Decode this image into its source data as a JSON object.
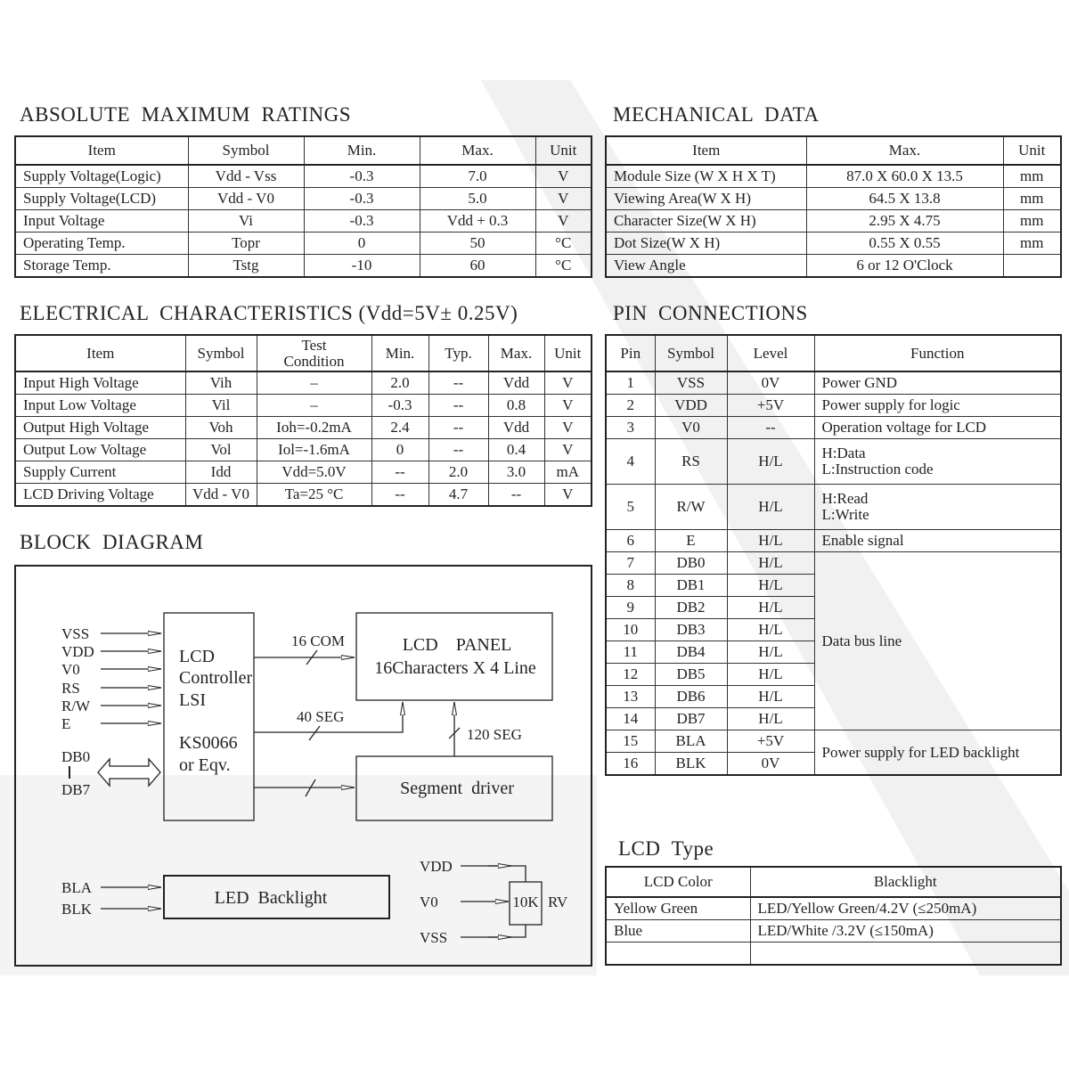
{
  "absolute_max": {
    "title": "ABSOLUTE  MAXIMUM  RATINGS",
    "headers": [
      "Item",
      "Symbol",
      "Min.",
      "Max.",
      "Unit"
    ],
    "rows": [
      [
        "Supply Voltage(Logic)",
        "Vdd - Vss",
        "-0.3",
        "7.0",
        "V"
      ],
      [
        "Supply Voltage(LCD)",
        "Vdd - V0",
        "-0.3",
        "5.0",
        "V"
      ],
      [
        "Input  Voltage",
        "Vi",
        "-0.3",
        "Vdd + 0.3",
        "V"
      ],
      [
        "Operating  Temp.",
        "Topr",
        "0",
        "50",
        "°C"
      ],
      [
        "Storage  Temp.",
        "Tstg",
        "-10",
        "60",
        "°C"
      ]
    ]
  },
  "mechanical": {
    "title": "MECHANICAL  DATA",
    "headers": [
      "Item",
      "Max.",
      "Unit"
    ],
    "rows": [
      [
        "Module  Size (W X H X T)",
        "87.0  X  60.0 X 13.5",
        "mm"
      ],
      [
        "Viewing  Area(W X H)",
        "64.5 X 13.8",
        "mm"
      ],
      [
        "Character  Size(W X H)",
        "2.95 X 4.75",
        "mm"
      ],
      [
        "Dot  Size(W X H)",
        "0.55 X 0.55",
        "mm"
      ],
      [
        "View  Angle",
        "6  or  12 O'Clock",
        ""
      ]
    ]
  },
  "electrical": {
    "title": "ELECTRICAL  CHARACTERISTICS (Vdd=5V± 0.25V)",
    "headers": [
      "Item",
      "Symbol",
      "Test\nCondition",
      "Min.",
      "Typ.",
      "Max.",
      "Unit"
    ],
    "rows": [
      [
        "Input  High  Voltage",
        "Vih",
        "–",
        "2.0",
        "--",
        "Vdd",
        "V"
      ],
      [
        "Input  Low  Voltage",
        "Vil",
        "–",
        "-0.3",
        "--",
        "0.8",
        "V"
      ],
      [
        "Output  High  Voltage",
        "Voh",
        "Ioh=-0.2mA",
        "2.4",
        "--",
        "Vdd",
        "V"
      ],
      [
        "Output  Low  Voltage",
        "Vol",
        "Iol=-1.6mA",
        "0",
        "--",
        "0.4",
        "V"
      ],
      [
        "Supply  Current",
        "Idd",
        "Vdd=5.0V",
        "--",
        "2.0",
        "3.0",
        "mA"
      ],
      [
        "LCD  Driving  Voltage",
        "Vdd - V0",
        "Ta=25 °C",
        "--",
        "4.7",
        "--",
        "V"
      ]
    ]
  },
  "pins": {
    "title": "PIN  CONNECTIONS",
    "headers": [
      "Pin",
      "Symbol",
      "Level",
      "Function"
    ],
    "rows": [
      {
        "pin": "1",
        "symbol": "VSS",
        "level": "0V",
        "function": "Power   GND"
      },
      {
        "pin": "2",
        "symbol": "VDD",
        "level": "+5V",
        "function": "Power  supply  for  logic"
      },
      {
        "pin": "3",
        "symbol": "V0",
        "level": "--",
        "function": "Operation  voltage  for  LCD"
      },
      {
        "pin": "4",
        "symbol": "RS",
        "level": "H/L",
        "function": "H:Data\nL:Instruction  code"
      },
      {
        "pin": "5",
        "symbol": "R/W",
        "level": "H/L",
        "function": "H:Read\nL:Write"
      },
      {
        "pin": "6",
        "symbol": "E",
        "level": "H/L",
        "function": "Enable  signal"
      },
      {
        "pin": "7",
        "symbol": "DB0",
        "level": "H/L",
        "function": "Data  bus  line"
      },
      {
        "pin": "8",
        "symbol": "DB1",
        "level": "H/L"
      },
      {
        "pin": "9",
        "symbol": "DB2",
        "level": "H/L"
      },
      {
        "pin": "10",
        "symbol": "DB3",
        "level": "H/L"
      },
      {
        "pin": "11",
        "symbol": "DB4",
        "level": "H/L"
      },
      {
        "pin": "12",
        "symbol": "DB5",
        "level": "H/L"
      },
      {
        "pin": "13",
        "symbol": "DB6",
        "level": "H/L"
      },
      {
        "pin": "14",
        "symbol": "DB7",
        "level": "H/L"
      },
      {
        "pin": "15",
        "symbol": "BLA",
        "level": "+5V",
        "function": "Power  supply  for  LED  backlight"
      },
      {
        "pin": "16",
        "symbol": "BLK",
        "level": "0V"
      }
    ]
  },
  "block_diagram": {
    "title": "BLOCK  DIAGRAM",
    "inputs": [
      "VSS",
      "VDD",
      "V0",
      "RS",
      "R/W",
      "E"
    ],
    "db_top": "DB0",
    "db_bottom": "DB7",
    "controller": [
      "LCD",
      "Controller",
      "LSI",
      "KS0066",
      "or  Eqv."
    ],
    "panel": [
      "LCD    PANEL",
      "16Characters X 4 Line"
    ],
    "segment_driver": "Segment  driver",
    "com_label": "16 COM",
    "seg40_label": "40 SEG",
    "seg120_label": "120 SEG",
    "backlight_inputs": [
      "BLA",
      "BLK"
    ],
    "backlight": "LED  Backlight",
    "pot_inputs": [
      "VDD",
      "V0",
      "VSS"
    ],
    "pot_value": "10K",
    "pot_label": "RV"
  },
  "lcd_type": {
    "title": "LCD  Type",
    "headers": [
      "LCD  Color",
      "Blacklight"
    ],
    "rows": [
      [
        "Yellow Green",
        "LED/Yellow Green/4.2V (≤250mA)"
      ],
      [
        " Blue",
        "LED/White /3.2V (≤150mA)"
      ],
      [
        "",
        ""
      ]
    ]
  }
}
